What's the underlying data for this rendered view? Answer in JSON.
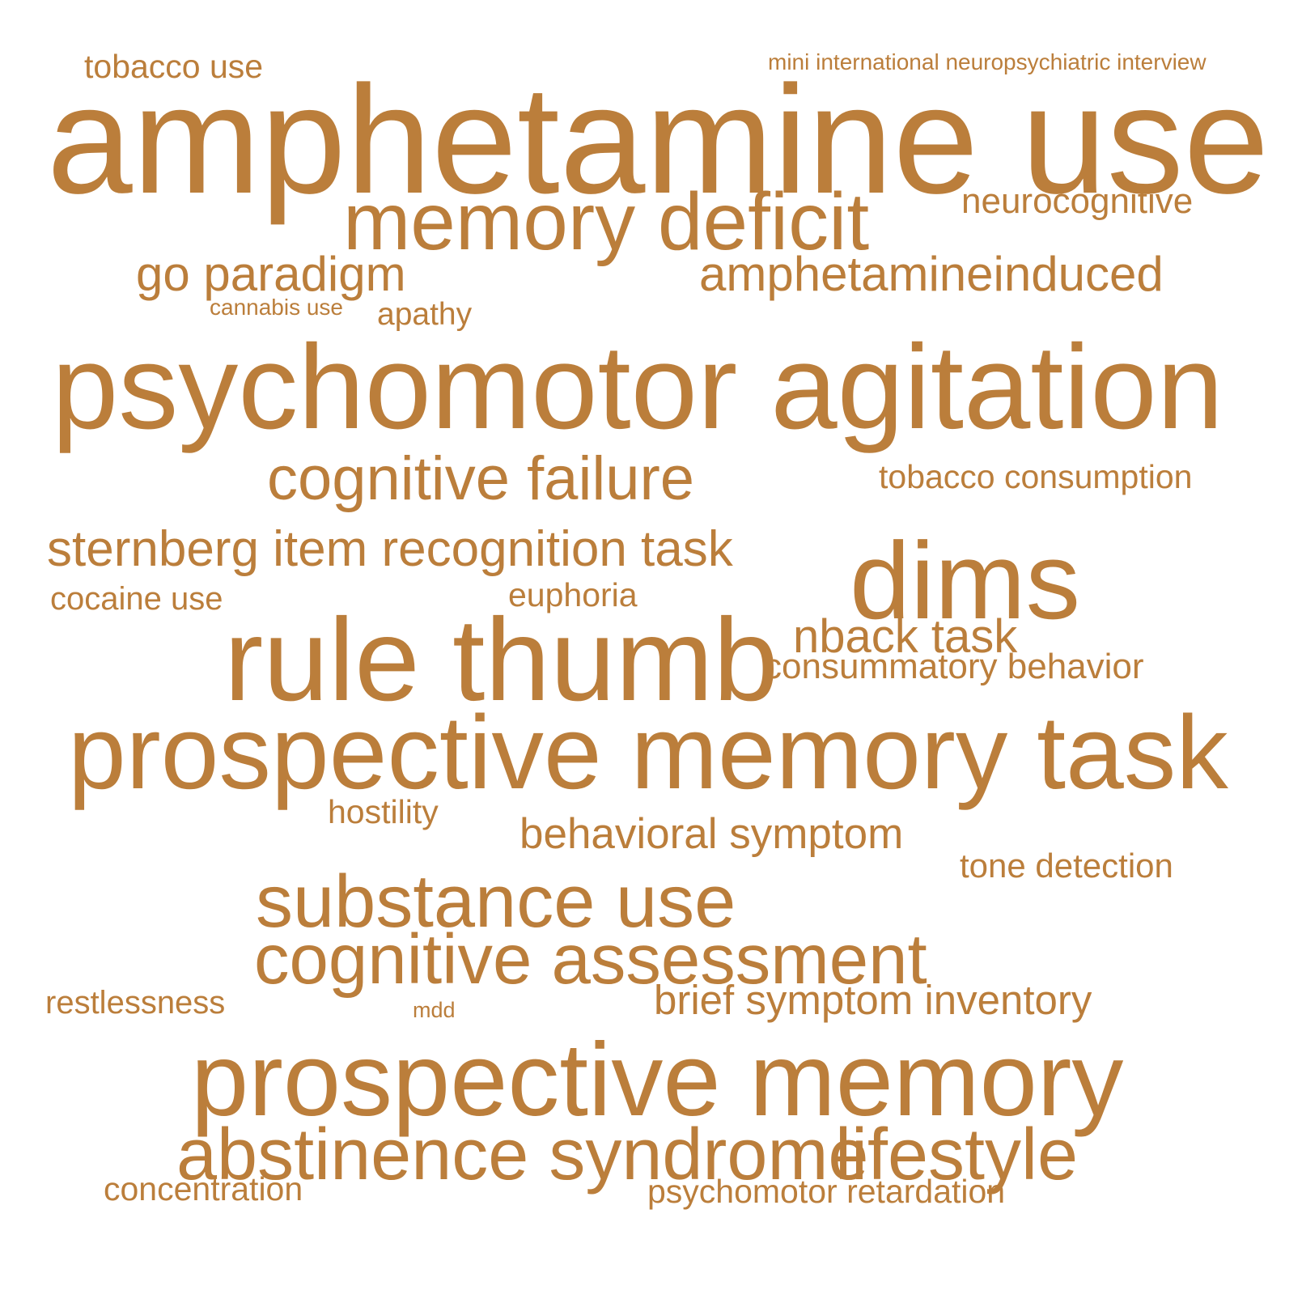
{
  "color": "#bb7e3b",
  "words": [
    "amphetamine use",
    "psychomotor agitation",
    "prospective memory task",
    "prospective memory",
    "rule thumb",
    "dims",
    "memory deficit",
    "substance use",
    "cognitive assessment",
    "abstinence syndrome",
    "lifestyle",
    "cognitive failure",
    "sternberg item recognition task",
    "nback task",
    "go paradigm",
    "amphetamineinduced",
    "behavioral symptom",
    "brief symptom inventory",
    "consummatory behavior",
    "neurocognitive",
    "tobacco use",
    "tobacco consumption",
    "tone detection",
    "psychomotor retardation",
    "concentration",
    "restlessness",
    "cocaine use",
    "euphoria",
    "hostility",
    "apathy",
    "mini international neuropsychiatric interview",
    "cannabis use",
    "mdd"
  ]
}
